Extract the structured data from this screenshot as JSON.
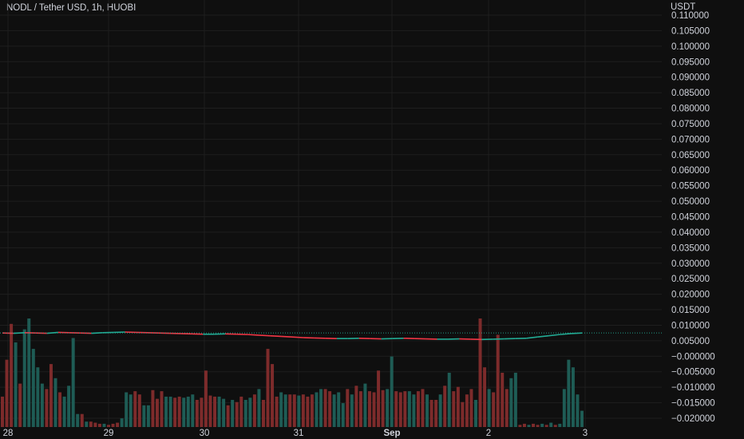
{
  "header": {
    "title": "NODL / Tether USD, 1h, HUOBI"
  },
  "colors": {
    "background": "#0f0f0f",
    "grid": "#1e1e1e",
    "up": "#22ab94",
    "down": "#f23645",
    "volume_up": "#1e5c55",
    "volume_down": "#7d2b2b",
    "text": "#d1d4dc"
  },
  "chart_data": {
    "type": "candlestick",
    "title": "NODL / Tether USD, 1h, HUOBI",
    "y_unit_label": "USDT",
    "ylim": [
      -0.021,
      0.113
    ],
    "y_ticks": [
      "0.110000",
      "0.105000",
      "0.100000",
      "0.095000",
      "0.090000",
      "0.085000",
      "0.080000",
      "0.075000",
      "0.070000",
      "0.065000",
      "0.060000",
      "0.055000",
      "0.050000",
      "0.045000",
      "0.040000",
      "0.035000",
      "0.030000",
      "0.025000",
      "0.020000",
      "0.015000",
      "0.010000",
      "0.005000",
      "−0.000000",
      "−0.005000",
      "−0.010000",
      "−0.015000",
      "−0.020000"
    ],
    "x_ticks": [
      "28",
      "29",
      "30",
      "31",
      "Sep",
      "2",
      "3"
    ],
    "x_tick_bold": [
      false,
      false,
      false,
      false,
      true,
      false,
      false
    ],
    "grid": true,
    "last_price_line": 0.0075,
    "price_series": [
      0.0075,
      0.0074,
      0.0076,
      0.0075,
      0.0074,
      0.0077,
      0.0076,
      0.0075,
      0.0074,
      0.0076,
      0.0077,
      0.0078,
      0.0077,
      0.0076,
      0.0075,
      0.0074,
      0.0073,
      0.0072,
      0.0071,
      0.0071,
      0.0072,
      0.0071,
      0.007,
      0.0068,
      0.0066,
      0.0064,
      0.0062,
      0.006,
      0.0059,
      0.0058,
      0.0057,
      0.0057,
      0.0058,
      0.0057,
      0.0056,
      0.0057,
      0.0058,
      0.0057,
      0.0056,
      0.0055,
      0.0055,
      0.0056,
      0.0055,
      0.0054,
      0.0055,
      0.0056,
      0.0057,
      0.0058,
      0.0062,
      0.0066,
      0.007,
      0.0073,
      0.0075
    ],
    "volume": [
      {
        "v": 0.28,
        "up": false
      },
      {
        "v": 0.62,
        "up": false
      },
      {
        "v": 0.95,
        "up": false
      },
      {
        "v": 0.78,
        "up": true
      },
      {
        "v": 0.4,
        "up": false
      },
      {
        "v": 0.9,
        "up": true
      },
      {
        "v": 1.0,
        "up": true
      },
      {
        "v": 0.72,
        "up": true
      },
      {
        "v": 0.55,
        "up": true
      },
      {
        "v": 0.4,
        "up": true
      },
      {
        "v": 0.35,
        "up": false
      },
      {
        "v": 0.58,
        "up": false
      },
      {
        "v": 0.45,
        "up": true
      },
      {
        "v": 0.32,
        "up": false
      },
      {
        "v": 0.28,
        "up": true
      },
      {
        "v": 0.38,
        "up": true
      },
      {
        "v": 0.82,
        "up": true
      },
      {
        "v": 0.12,
        "up": true
      },
      {
        "v": 0.12,
        "up": false
      },
      {
        "v": 0.05,
        "up": true
      },
      {
        "v": 0.05,
        "up": false
      },
      {
        "v": 0.04,
        "up": false
      },
      {
        "v": 0.03,
        "up": false
      },
      {
        "v": 0.03,
        "up": true
      },
      {
        "v": 0.02,
        "up": false
      },
      {
        "v": 0.03,
        "up": false
      },
      {
        "v": 0.04,
        "up": false
      },
      {
        "v": 0.08,
        "up": true
      },
      {
        "v": 0.32,
        "up": true
      },
      {
        "v": 0.3,
        "up": true
      },
      {
        "v": 0.33,
        "up": false
      },
      {
        "v": 0.3,
        "up": false
      },
      {
        "v": 0.2,
        "up": true
      },
      {
        "v": 0.2,
        "up": true
      },
      {
        "v": 0.34,
        "up": false
      },
      {
        "v": 0.26,
        "up": false
      },
      {
        "v": 0.33,
        "up": false
      },
      {
        "v": 0.28,
        "up": true
      },
      {
        "v": 0.28,
        "up": true
      },
      {
        "v": 0.27,
        "up": false
      },
      {
        "v": 0.28,
        "up": false
      },
      {
        "v": 0.27,
        "up": true
      },
      {
        "v": 0.28,
        "up": true
      },
      {
        "v": 0.3,
        "up": true
      },
      {
        "v": 0.25,
        "up": false
      },
      {
        "v": 0.27,
        "up": false
      },
      {
        "v": 0.52,
        "up": false
      },
      {
        "v": 0.29,
        "up": false
      },
      {
        "v": 0.28,
        "up": false
      },
      {
        "v": 0.28,
        "up": true
      },
      {
        "v": 0.26,
        "up": true
      },
      {
        "v": 0.2,
        "up": false
      },
      {
        "v": 0.25,
        "up": true
      },
      {
        "v": 0.23,
        "up": false
      },
      {
        "v": 0.28,
        "up": false
      },
      {
        "v": 0.25,
        "up": true
      },
      {
        "v": 0.27,
        "up": true
      },
      {
        "v": 0.3,
        "up": false
      },
      {
        "v": 0.35,
        "up": true
      },
      {
        "v": 0.25,
        "up": false
      },
      {
        "v": 0.72,
        "up": false
      },
      {
        "v": 0.58,
        "up": false
      },
      {
        "v": 0.28,
        "up": false
      },
      {
        "v": 0.32,
        "up": true
      },
      {
        "v": 0.3,
        "up": true
      },
      {
        "v": 0.3,
        "up": false
      },
      {
        "v": 0.3,
        "up": false
      },
      {
        "v": 0.29,
        "up": true
      },
      {
        "v": 0.3,
        "up": false
      },
      {
        "v": 0.28,
        "up": false
      },
      {
        "v": 0.3,
        "up": false
      },
      {
        "v": 0.32,
        "up": true
      },
      {
        "v": 0.35,
        "up": true
      },
      {
        "v": 0.35,
        "up": false
      },
      {
        "v": 0.33,
        "up": false
      },
      {
        "v": 0.3,
        "up": true
      },
      {
        "v": 0.32,
        "up": true
      },
      {
        "v": 0.22,
        "up": true
      },
      {
        "v": 0.35,
        "up": false
      },
      {
        "v": 0.3,
        "up": true
      },
      {
        "v": 0.38,
        "up": false
      },
      {
        "v": 0.33,
        "up": false
      },
      {
        "v": 0.4,
        "up": true
      },
      {
        "v": 0.33,
        "up": false
      },
      {
        "v": 0.32,
        "up": false
      },
      {
        "v": 0.52,
        "up": false
      },
      {
        "v": 0.34,
        "up": false
      },
      {
        "v": 0.35,
        "up": true
      },
      {
        "v": 0.65,
        "up": true
      },
      {
        "v": 0.33,
        "up": false
      },
      {
        "v": 0.32,
        "up": false
      },
      {
        "v": 0.33,
        "up": false
      },
      {
        "v": 0.33,
        "up": true
      },
      {
        "v": 0.3,
        "up": true
      },
      {
        "v": 0.33,
        "up": false
      },
      {
        "v": 0.35,
        "up": false
      },
      {
        "v": 0.3,
        "up": true
      },
      {
        "v": 0.25,
        "up": false
      },
      {
        "v": 0.25,
        "up": false
      },
      {
        "v": 0.3,
        "up": true
      },
      {
        "v": 0.38,
        "up": false
      },
      {
        "v": 0.5,
        "up": true
      },
      {
        "v": 0.33,
        "up": false
      },
      {
        "v": 0.37,
        "up": false
      },
      {
        "v": 0.23,
        "up": false
      },
      {
        "v": 0.3,
        "up": false
      },
      {
        "v": 0.35,
        "up": false
      },
      {
        "v": 0.25,
        "up": true
      },
      {
        "v": 1.0,
        "up": false
      },
      {
        "v": 0.55,
        "up": false
      },
      {
        "v": 0.35,
        "up": true
      },
      {
        "v": 0.32,
        "up": false
      },
      {
        "v": 0.85,
        "up": false
      },
      {
        "v": 0.5,
        "up": false
      },
      {
        "v": 0.35,
        "up": false
      },
      {
        "v": 0.45,
        "up": true
      },
      {
        "v": 0.5,
        "up": true
      },
      {
        "v": 0.02,
        "up": false
      },
      {
        "v": 0.03,
        "up": false
      },
      {
        "v": 0.02,
        "up": true
      },
      {
        "v": 0.03,
        "up": false
      },
      {
        "v": 0.02,
        "up": false
      },
      {
        "v": 0.03,
        "up": true
      },
      {
        "v": 0.02,
        "up": false
      },
      {
        "v": 0.04,
        "up": true
      },
      {
        "v": 0.02,
        "up": false
      },
      {
        "v": 0.03,
        "up": true
      },
      {
        "v": 0.35,
        "up": true
      },
      {
        "v": 0.62,
        "up": true
      },
      {
        "v": 0.55,
        "up": true
      },
      {
        "v": 0.3,
        "up": true
      },
      {
        "v": 0.15,
        "up": true
      }
    ]
  }
}
